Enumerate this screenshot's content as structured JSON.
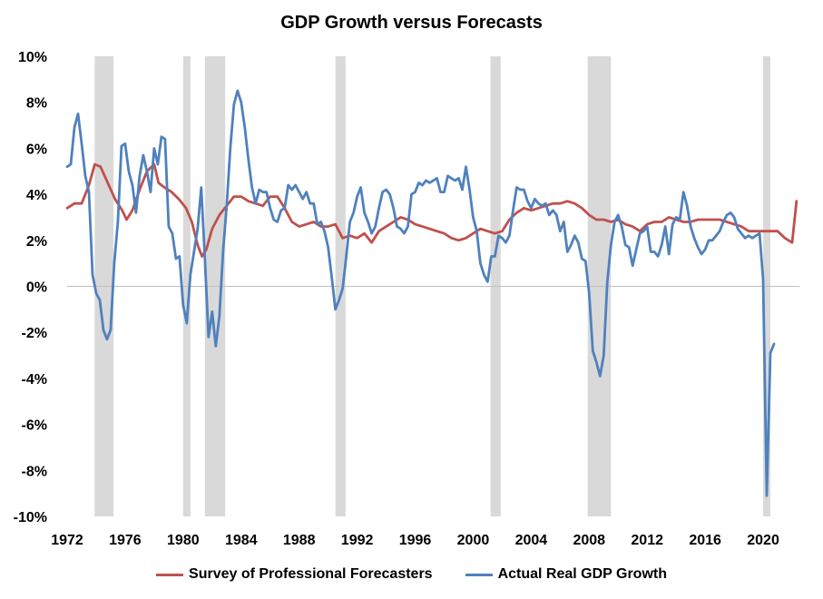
{
  "chart_data": {
    "type": "line",
    "title": "GDP Growth versus Forecasts",
    "xlabel": "",
    "ylabel": "",
    "ylim": [
      -10,
      10
    ],
    "xlim": [
      1972,
      2022.5
    ],
    "x_ticks": [
      "1972",
      "1976",
      "1980",
      "1984",
      "1988",
      "1992",
      "1996",
      "2000",
      "2004",
      "2008",
      "2012",
      "2016",
      "2020"
    ],
    "y_ticks": [
      "10%",
      "8%",
      "6%",
      "4%",
      "2%",
      "0%",
      "-2%",
      "-4%",
      "-6%",
      "-8%",
      "-10%"
    ],
    "grid": false,
    "legend_position": "bottom",
    "recessions": [
      [
        1973.9,
        1975.2
      ],
      [
        1980.0,
        1980.5
      ],
      [
        1981.5,
        1982.9
      ],
      [
        1990.5,
        1991.2
      ],
      [
        2001.2,
        2001.9
      ],
      [
        2007.9,
        2009.5
      ],
      [
        2020.0,
        2020.5
      ]
    ],
    "series": [
      {
        "name": "Survey of Professional Forecasters",
        "color": "#C0504D",
        "points": [
          [
            1972.0,
            3.4
          ],
          [
            1972.5,
            3.6
          ],
          [
            1973.0,
            3.6
          ],
          [
            1973.5,
            4.4
          ],
          [
            1973.9,
            5.3
          ],
          [
            1974.3,
            5.2
          ],
          [
            1974.8,
            4.5
          ],
          [
            1975.3,
            3.8
          ],
          [
            1975.8,
            3.3
          ],
          [
            1976.1,
            2.9
          ],
          [
            1976.5,
            3.3
          ],
          [
            1977.0,
            4.2
          ],
          [
            1977.5,
            5.0
          ],
          [
            1978.0,
            5.3
          ],
          [
            1978.3,
            4.5
          ],
          [
            1978.7,
            4.3
          ],
          [
            1979.2,
            4.1
          ],
          [
            1979.7,
            3.8
          ],
          [
            1980.2,
            3.4
          ],
          [
            1980.6,
            2.8
          ],
          [
            1981.0,
            1.8
          ],
          [
            1981.3,
            1.3
          ],
          [
            1981.6,
            1.6
          ],
          [
            1982.0,
            2.5
          ],
          [
            1982.5,
            3.1
          ],
          [
            1983.0,
            3.5
          ],
          [
            1983.5,
            3.9
          ],
          [
            1984.0,
            3.9
          ],
          [
            1984.5,
            3.7
          ],
          [
            1985.0,
            3.6
          ],
          [
            1985.5,
            3.5
          ],
          [
            1986.0,
            3.9
          ],
          [
            1986.5,
            3.9
          ],
          [
            1987.0,
            3.4
          ],
          [
            1987.5,
            2.8
          ],
          [
            1988.0,
            2.6
          ],
          [
            1988.5,
            2.7
          ],
          [
            1989.0,
            2.8
          ],
          [
            1989.5,
            2.6
          ],
          [
            1990.0,
            2.6
          ],
          [
            1990.5,
            2.7
          ],
          [
            1991.0,
            2.1
          ],
          [
            1991.5,
            2.2
          ],
          [
            1992.0,
            2.1
          ],
          [
            1992.5,
            2.3
          ],
          [
            1993.0,
            1.9
          ],
          [
            1993.5,
            2.4
          ],
          [
            1994.0,
            2.6
          ],
          [
            1994.5,
            2.8
          ],
          [
            1995.0,
            3.0
          ],
          [
            1995.5,
            2.9
          ],
          [
            1996.0,
            2.7
          ],
          [
            1996.5,
            2.6
          ],
          [
            1997.0,
            2.5
          ],
          [
            1997.5,
            2.4
          ],
          [
            1998.0,
            2.3
          ],
          [
            1998.5,
            2.1
          ],
          [
            1999.0,
            2.0
          ],
          [
            1999.5,
            2.1
          ],
          [
            2000.0,
            2.3
          ],
          [
            2000.5,
            2.5
          ],
          [
            2001.0,
            2.4
          ],
          [
            2001.5,
            2.3
          ],
          [
            2002.0,
            2.4
          ],
          [
            2002.5,
            2.9
          ],
          [
            2003.0,
            3.2
          ],
          [
            2003.5,
            3.4
          ],
          [
            2004.0,
            3.3
          ],
          [
            2004.5,
            3.4
          ],
          [
            2005.0,
            3.5
          ],
          [
            2005.5,
            3.6
          ],
          [
            2006.0,
            3.6
          ],
          [
            2006.5,
            3.7
          ],
          [
            2007.0,
            3.6
          ],
          [
            2007.5,
            3.4
          ],
          [
            2008.0,
            3.1
          ],
          [
            2008.5,
            2.9
          ],
          [
            2009.0,
            2.9
          ],
          [
            2009.5,
            2.8
          ],
          [
            2010.0,
            2.9
          ],
          [
            2010.5,
            2.7
          ],
          [
            2011.0,
            2.6
          ],
          [
            2011.5,
            2.4
          ],
          [
            2012.0,
            2.7
          ],
          [
            2012.5,
            2.8
          ],
          [
            2013.0,
            2.8
          ],
          [
            2013.5,
            3.0
          ],
          [
            2014.0,
            2.9
          ],
          [
            2014.5,
            2.8
          ],
          [
            2015.0,
            2.8
          ],
          [
            2015.5,
            2.9
          ],
          [
            2016.0,
            2.9
          ],
          [
            2016.5,
            2.9
          ],
          [
            2017.0,
            2.9
          ],
          [
            2017.5,
            2.8
          ],
          [
            2018.0,
            2.7
          ],
          [
            2018.5,
            2.6
          ],
          [
            2019.0,
            2.4
          ],
          [
            2019.5,
            2.4
          ],
          [
            2020.0,
            2.4
          ],
          [
            2020.5,
            2.4
          ],
          [
            2021.0,
            2.4
          ],
          [
            2021.5,
            2.1
          ],
          [
            2022.0,
            1.9
          ],
          [
            2022.3,
            3.7
          ]
        ]
      },
      {
        "name": "Actual Real GDP Growth",
        "color": "#4F81BD",
        "points": [
          [
            1972.0,
            5.2
          ],
          [
            1972.25,
            5.3
          ],
          [
            1972.5,
            6.9
          ],
          [
            1972.75,
            7.5
          ],
          [
            1973.0,
            6.2
          ],
          [
            1973.25,
            4.8
          ],
          [
            1973.5,
            4.1
          ],
          [
            1973.75,
            0.5
          ],
          [
            1974.0,
            -0.3
          ],
          [
            1974.25,
            -0.6
          ],
          [
            1974.5,
            -1.9
          ],
          [
            1974.75,
            -2.3
          ],
          [
            1975.0,
            -1.9
          ],
          [
            1975.25,
            1.0
          ],
          [
            1975.5,
            2.8
          ],
          [
            1975.75,
            6.1
          ],
          [
            1976.0,
            6.2
          ],
          [
            1976.25,
            5.0
          ],
          [
            1976.5,
            4.4
          ],
          [
            1976.75,
            3.2
          ],
          [
            1977.0,
            4.8
          ],
          [
            1977.25,
            5.7
          ],
          [
            1977.5,
            5.0
          ],
          [
            1977.75,
            4.1
          ],
          [
            1978.0,
            6.0
          ],
          [
            1978.25,
            5.3
          ],
          [
            1978.5,
            6.5
          ],
          [
            1978.75,
            6.4
          ],
          [
            1979.0,
            2.6
          ],
          [
            1979.25,
            2.3
          ],
          [
            1979.5,
            1.2
          ],
          [
            1979.75,
            1.3
          ],
          [
            1980.0,
            -0.8
          ],
          [
            1980.25,
            -1.6
          ],
          [
            1980.5,
            0.5
          ],
          [
            1980.75,
            1.5
          ],
          [
            1981.0,
            2.5
          ],
          [
            1981.25,
            4.3
          ],
          [
            1981.5,
            1.2
          ],
          [
            1981.75,
            -2.2
          ],
          [
            1982.0,
            -1.1
          ],
          [
            1982.25,
            -2.6
          ],
          [
            1982.5,
            -1.3
          ],
          [
            1982.75,
            1.5
          ],
          [
            1983.0,
            3.5
          ],
          [
            1983.25,
            6.0
          ],
          [
            1983.5,
            7.9
          ],
          [
            1983.75,
            8.5
          ],
          [
            1984.0,
            8.0
          ],
          [
            1984.25,
            6.9
          ],
          [
            1984.5,
            5.5
          ],
          [
            1984.75,
            4.3
          ],
          [
            1985.0,
            3.6
          ],
          [
            1985.25,
            4.2
          ],
          [
            1985.5,
            4.1
          ],
          [
            1985.75,
            4.1
          ],
          [
            1986.0,
            3.4
          ],
          [
            1986.25,
            2.9
          ],
          [
            1986.5,
            2.8
          ],
          [
            1986.75,
            3.3
          ],
          [
            1987.0,
            3.4
          ],
          [
            1987.25,
            4.4
          ],
          [
            1987.5,
            4.2
          ],
          [
            1987.75,
            4.4
          ],
          [
            1988.0,
            4.1
          ],
          [
            1988.25,
            3.8
          ],
          [
            1988.5,
            4.1
          ],
          [
            1988.75,
            3.6
          ],
          [
            1989.0,
            3.6
          ],
          [
            1989.25,
            2.7
          ],
          [
            1989.5,
            2.8
          ],
          [
            1989.75,
            2.4
          ],
          [
            1990.0,
            1.7
          ],
          [
            1990.25,
            0.4
          ],
          [
            1990.5,
            -1.0
          ],
          [
            1990.75,
            -0.6
          ],
          [
            1991.0,
            -0.1
          ],
          [
            1991.25,
            1.3
          ],
          [
            1991.5,
            2.8
          ],
          [
            1991.75,
            3.2
          ],
          [
            1992.0,
            3.9
          ],
          [
            1992.25,
            4.3
          ],
          [
            1992.5,
            3.2
          ],
          [
            1992.75,
            2.8
          ],
          [
            1993.0,
            2.3
          ],
          [
            1993.25,
            2.6
          ],
          [
            1993.5,
            3.4
          ],
          [
            1993.75,
            4.1
          ],
          [
            1994.0,
            4.2
          ],
          [
            1994.25,
            4.0
          ],
          [
            1994.5,
            3.4
          ],
          [
            1994.75,
            2.6
          ],
          [
            1995.0,
            2.5
          ],
          [
            1995.25,
            2.3
          ],
          [
            1995.5,
            2.6
          ],
          [
            1995.75,
            4.0
          ],
          [
            1996.0,
            4.1
          ],
          [
            1996.25,
            4.5
          ],
          [
            1996.5,
            4.4
          ],
          [
            1996.75,
            4.6
          ],
          [
            1997.0,
            4.5
          ],
          [
            1997.25,
            4.6
          ],
          [
            1997.5,
            4.7
          ],
          [
            1997.75,
            4.1
          ],
          [
            1998.0,
            4.1
          ],
          [
            1998.25,
            4.8
          ],
          [
            1998.5,
            4.7
          ],
          [
            1998.75,
            4.6
          ],
          [
            1999.0,
            4.7
          ],
          [
            1999.25,
            4.2
          ],
          [
            1999.5,
            5.2
          ],
          [
            1999.75,
            4.2
          ],
          [
            2000.0,
            3.0
          ],
          [
            2000.25,
            2.4
          ],
          [
            2000.5,
            1.0
          ],
          [
            2000.75,
            0.5
          ],
          [
            2001.0,
            0.2
          ],
          [
            2001.25,
            1.3
          ],
          [
            2001.5,
            1.3
          ],
          [
            2001.75,
            2.2
          ],
          [
            2002.0,
            2.1
          ],
          [
            2002.25,
            1.9
          ],
          [
            2002.5,
            2.2
          ],
          [
            2002.75,
            3.3
          ],
          [
            2003.0,
            4.3
          ],
          [
            2003.25,
            4.2
          ],
          [
            2003.5,
            4.2
          ],
          [
            2003.75,
            3.7
          ],
          [
            2004.0,
            3.4
          ],
          [
            2004.25,
            3.8
          ],
          [
            2004.5,
            3.6
          ],
          [
            2004.75,
            3.5
          ],
          [
            2005.0,
            3.6
          ],
          [
            2005.25,
            3.1
          ],
          [
            2005.5,
            3.3
          ],
          [
            2005.75,
            3.1
          ],
          [
            2006.0,
            2.4
          ],
          [
            2006.25,
            2.8
          ],
          [
            2006.5,
            1.5
          ],
          [
            2006.75,
            1.8
          ],
          [
            2007.0,
            2.2
          ],
          [
            2007.25,
            1.9
          ],
          [
            2007.5,
            1.2
          ],
          [
            2007.75,
            1.1
          ],
          [
            2008.0,
            -0.3
          ],
          [
            2008.25,
            -2.8
          ],
          [
            2008.5,
            -3.3
          ],
          [
            2008.75,
            -3.9
          ],
          [
            2009.0,
            -3.0
          ],
          [
            2009.25,
            0.2
          ],
          [
            2009.5,
            1.8
          ],
          [
            2009.75,
            2.8
          ],
          [
            2010.0,
            3.1
          ],
          [
            2010.25,
            2.6
          ],
          [
            2010.5,
            1.8
          ],
          [
            2010.75,
            1.7
          ],
          [
            2011.0,
            0.9
          ],
          [
            2011.25,
            1.6
          ],
          [
            2011.5,
            2.3
          ],
          [
            2011.75,
            2.4
          ],
          [
            2012.0,
            2.6
          ],
          [
            2012.25,
            1.5
          ],
          [
            2012.5,
            1.5
          ],
          [
            2012.75,
            1.3
          ],
          [
            2013.0,
            1.8
          ],
          [
            2013.25,
            2.6
          ],
          [
            2013.5,
            1.4
          ],
          [
            2013.75,
            2.7
          ],
          [
            2014.0,
            3.0
          ],
          [
            2014.25,
            2.9
          ],
          [
            2014.5,
            4.1
          ],
          [
            2014.75,
            3.5
          ],
          [
            2015.0,
            2.6
          ],
          [
            2015.25,
            2.1
          ],
          [
            2015.5,
            1.7
          ],
          [
            2015.75,
            1.4
          ],
          [
            2016.0,
            1.6
          ],
          [
            2016.25,
            2.0
          ],
          [
            2016.5,
            2.0
          ],
          [
            2016.75,
            2.2
          ],
          [
            2017.0,
            2.4
          ],
          [
            2017.25,
            2.8
          ],
          [
            2017.5,
            3.1
          ],
          [
            2017.75,
            3.2
          ],
          [
            2018.0,
            3.0
          ],
          [
            2018.25,
            2.5
          ],
          [
            2018.5,
            2.3
          ],
          [
            2018.75,
            2.1
          ],
          [
            2019.0,
            2.2
          ],
          [
            2019.25,
            2.1
          ],
          [
            2019.5,
            2.2
          ],
          [
            2019.75,
            2.3
          ],
          [
            2020.0,
            0.3
          ],
          [
            2020.25,
            -9.1
          ],
          [
            2020.5,
            -2.9
          ],
          [
            2020.75,
            -2.5
          ]
        ]
      }
    ]
  }
}
